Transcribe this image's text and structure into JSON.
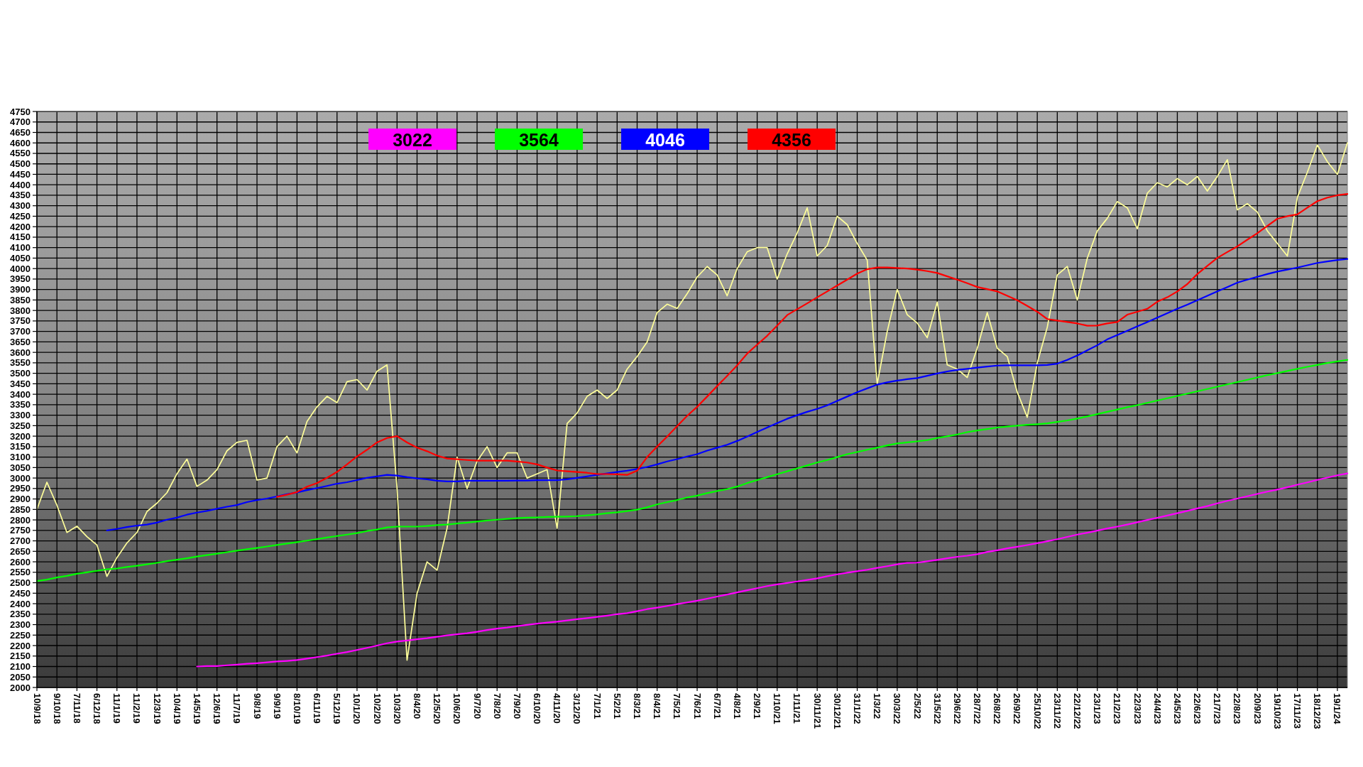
{
  "chart_data": {
    "type": "line",
    "categories": [
      "10/9/18",
      null,
      "9/10/18",
      null,
      "7/11/18",
      null,
      "6/12/18",
      null,
      "11/1/19",
      null,
      "11/2/19",
      null,
      "12/3/19",
      null,
      "10/4/19",
      null,
      "14/5/19",
      null,
      "12/6/19",
      null,
      "11/7/19",
      null,
      "9/8/19",
      null,
      "9/9/19",
      null,
      "8/10/19",
      null,
      "6/11/19",
      null,
      "5/12/19",
      null,
      "10/1/20",
      null,
      "10/2/20",
      null,
      "10/3/20",
      null,
      "8/4/20",
      null,
      "12/5/20",
      null,
      "10/6/20",
      null,
      "9/7/20",
      null,
      "7/8/20",
      null,
      "7/9/20",
      null,
      "6/10/20",
      null,
      "4/11/20",
      null,
      "3/12/20",
      null,
      "7/1/21",
      null,
      "5/2/21",
      null,
      "8/3/21",
      null,
      "8/4/21",
      null,
      "7/5/21",
      null,
      "7/6/21",
      null,
      "6/7/21",
      null,
      "4/8/21",
      null,
      "2/9/21",
      null,
      "1/10/21",
      null,
      "1/11/21",
      null,
      "30/11/21",
      null,
      "30/12/21",
      null,
      "31/1/22",
      null,
      "1/3/22",
      null,
      "30/3/22",
      null,
      "2/5/22",
      null,
      "31/5/22",
      null,
      "29/6/22",
      null,
      "28/7/22",
      null,
      "26/8/22",
      null,
      "26/9/22",
      null,
      "25/10/22",
      null,
      "23/11/22",
      null,
      "22/12/22",
      null,
      "23/1/23",
      null,
      "21/2/23",
      null,
      "22/3/23",
      null,
      "24/4/23",
      null,
      "24/5/23",
      null,
      "22/6/23",
      null,
      "21/7/23",
      null,
      "22/8/23",
      null,
      "20/9/23",
      null,
      "19/10/23",
      null,
      "17/11/23",
      null,
      "18/12/23",
      null,
      "19/1/24",
      null
    ],
    "series": [
      {
        "color": "#ffff99",
        "values": [
          2850,
          2980,
          2870,
          2740,
          2770,
          2720,
          2680,
          2530,
          2620,
          2690,
          2740,
          2840,
          2880,
          2930,
          3020,
          3090,
          2960,
          2990,
          3040,
          3130,
          3170,
          3180,
          2990,
          3000,
          3150,
          3200,
          3120,
          3270,
          3340,
          3390,
          3360,
          3460,
          3470,
          3420,
          3510,
          3540,
          2950,
          2130,
          2450,
          2600,
          2560,
          2760,
          3100,
          2950,
          3080,
          3150,
          3050,
          3120,
          3120,
          3000,
          3020,
          3040,
          2760,
          3260,
          3310,
          3390,
          3420,
          3380,
          3420,
          3520,
          3580,
          3650,
          3790,
          3830,
          3810,
          3880,
          3960,
          4010,
          3970,
          3870,
          4000,
          4080,
          4100,
          4100,
          3950,
          4070,
          4170,
          4290,
          4060,
          4110,
          4250,
          4210,
          4120,
          4040,
          3450,
          3700,
          3900,
          3780,
          3740,
          3670,
          3840,
          3540,
          3520,
          3480,
          3620,
          3790,
          3620,
          3580,
          3410,
          3290,
          3550,
          3720,
          3970,
          4010,
          3850,
          4050,
          4180,
          4240,
          4320,
          4290,
          4190,
          4360,
          4410,
          4390,
          4430,
          4400,
          4440,
          4370,
          4440,
          4520,
          4280,
          4310,
          4270,
          4180,
          4120,
          4060,
          4340,
          4460,
          4590,
          4510,
          4450,
          4600
        ]
      },
      {
        "name": "3022",
        "color": "#ff00ff",
        "values": [
          null,
          null,
          null,
          null,
          null,
          null,
          null,
          null,
          null,
          null,
          null,
          null,
          null,
          null,
          null,
          null,
          2100,
          2102,
          2102,
          2106,
          2109,
          2113,
          2116,
          2120,
          2124,
          2127,
          2131,
          2138,
          2145,
          2152,
          2161,
          2169,
          2179,
          2189,
          2200,
          2211,
          2219,
          2224,
          2230,
          2235,
          2242,
          2249,
          2254,
          2259,
          2266,
          2274,
          2281,
          2286,
          2293,
          2299,
          2305,
          2310,
          2314,
          2320,
          2326,
          2331,
          2337,
          2343,
          2350,
          2355,
          2364,
          2374,
          2381,
          2389,
          2398,
          2406,
          2414,
          2424,
          2434,
          2444,
          2454,
          2464,
          2474,
          2484,
          2492,
          2499,
          2506,
          2513,
          2521,
          2531,
          2540,
          2548,
          2555,
          2562,
          2571,
          2579,
          2588,
          2595,
          2596,
          2602,
          2609,
          2617,
          2624,
          2629,
          2636,
          2647,
          2655,
          2664,
          2672,
          2680,
          2689,
          2698,
          2708,
          2719,
          2730,
          2739,
          2749,
          2759,
          2768,
          2778,
          2789,
          2800,
          2810,
          2821,
          2832,
          2843,
          2855,
          2866,
          2879,
          2891,
          2902,
          2913,
          2924,
          2935,
          2945,
          2956,
          2968,
          2979,
          2991,
          3002,
          3013,
          3022
        ]
      },
      {
        "name": "3564",
        "color": "#00ff00",
        "values": [
          2508,
          2515,
          2525,
          2533,
          2543,
          2550,
          2557,
          2564,
          2568,
          2575,
          2581,
          2588,
          2595,
          2603,
          2610,
          2617,
          2625,
          2632,
          2639,
          2646,
          2653,
          2660,
          2666,
          2673,
          2680,
          2687,
          2694,
          2701,
          2708,
          2716,
          2723,
          2730,
          2737,
          2747,
          2754,
          2764,
          2768,
          2768,
          2768,
          2771,
          2775,
          2778,
          2783,
          2787,
          2792,
          2797,
          2801,
          2805,
          2808,
          2811,
          2812,
          2814,
          2815,
          2816,
          2818,
          2822,
          2826,
          2832,
          2836,
          2842,
          2849,
          2860,
          2874,
          2885,
          2895,
          2907,
          2916,
          2928,
          2938,
          2947,
          2959,
          2976,
          2990,
          3004,
          3018,
          3032,
          3046,
          3060,
          3074,
          3086,
          3100,
          3114,
          3124,
          3135,
          3145,
          3156,
          3165,
          3170,
          3175,
          3181,
          3191,
          3199,
          3208,
          3219,
          3227,
          3234,
          3241,
          3246,
          3250,
          3254,
          3257,
          3261,
          3268,
          3275,
          3284,
          3294,
          3305,
          3316,
          3327,
          3338,
          3348,
          3359,
          3370,
          3381,
          3392,
          3403,
          3414,
          3425,
          3436,
          3447,
          3458,
          3469,
          3480,
          3491,
          3501,
          3511,
          3521,
          3531,
          3540,
          3549,
          3557,
          3564
        ]
      },
      {
        "name": "4046",
        "color": "#0000ff",
        "values": [
          null,
          null,
          null,
          null,
          null,
          null,
          null,
          2750,
          2757,
          2766,
          2773,
          2778,
          2787,
          2801,
          2811,
          2825,
          2835,
          2843,
          2853,
          2863,
          2871,
          2885,
          2895,
          2902,
          2912,
          2923,
          2931,
          2942,
          2952,
          2962,
          2973,
          2980,
          2990,
          3001,
          3008,
          3015,
          3012,
          3004,
          2998,
          2994,
          2987,
          2984,
          2984,
          2987,
          2987,
          2987,
          2987,
          2987,
          2988,
          2988,
          2990,
          2990,
          2990,
          2994,
          3001,
          3008,
          3015,
          3022,
          3029,
          3035,
          3043,
          3053,
          3065,
          3079,
          3090,
          3103,
          3114,
          3131,
          3145,
          3159,
          3177,
          3198,
          3220,
          3241,
          3262,
          3283,
          3300,
          3316,
          3330,
          3347,
          3368,
          3389,
          3410,
          3428,
          3446,
          3457,
          3465,
          3472,
          3477,
          3488,
          3499,
          3509,
          3516,
          3521,
          3527,
          3532,
          3537,
          3538,
          3538,
          3538,
          3538,
          3540,
          3546,
          3564,
          3585,
          3610,
          3634,
          3662,
          3683,
          3703,
          3724,
          3745,
          3766,
          3787,
          3808,
          3828,
          3849,
          3870,
          3891,
          3912,
          3933,
          3947,
          3961,
          3974,
          3986,
          3995,
          4005,
          4016,
          4027,
          4034,
          4041,
          4046
        ]
      },
      {
        "name": "4356",
        "color": "#ff0000",
        "values": [
          null,
          null,
          null,
          null,
          null,
          null,
          null,
          null,
          null,
          null,
          null,
          null,
          null,
          null,
          null,
          null,
          null,
          null,
          null,
          null,
          null,
          null,
          null,
          null,
          2910,
          2920,
          2933,
          2959,
          2976,
          3001,
          3029,
          3065,
          3103,
          3135,
          3170,
          3191,
          3200,
          3170,
          3145,
          3128,
          3107,
          3093,
          3090,
          3086,
          3083,
          3083,
          3083,
          3083,
          3079,
          3074,
          3065,
          3050,
          3036,
          3032,
          3029,
          3025,
          3019,
          3019,
          3018,
          3015,
          3035,
          3100,
          3150,
          3198,
          3248,
          3297,
          3340,
          3389,
          3439,
          3488,
          3538,
          3594,
          3637,
          3679,
          3728,
          3778,
          3806,
          3834,
          3863,
          3891,
          3919,
          3947,
          3976,
          3997,
          4005,
          4005,
          4003,
          4000,
          3995,
          3988,
          3979,
          3963,
          3947,
          3930,
          3912,
          3902,
          3891,
          3870,
          3849,
          3822,
          3794,
          3759,
          3752,
          3745,
          3738,
          3727,
          3728,
          3738,
          3745,
          3780,
          3794,
          3808,
          3842,
          3863,
          3891,
          3926,
          3974,
          4013,
          4051,
          4079,
          4106,
          4138,
          4169,
          4204,
          4238,
          4250,
          4259,
          4291,
          4322,
          4339,
          4350,
          4356
        ]
      }
    ],
    "ylim": [
      2000,
      4750
    ],
    "yticks": [
      2000,
      2050,
      2100,
      2150,
      2200,
      2250,
      2300,
      2350,
      2400,
      2450,
      2500,
      2550,
      2600,
      2650,
      2700,
      2750,
      2800,
      2850,
      2900,
      2950,
      3000,
      3050,
      3100,
      3150,
      3200,
      3250,
      3300,
      3350,
      3400,
      3450,
      3500,
      3550,
      3600,
      3650,
      3700,
      3750,
      3800,
      3850,
      3900,
      3950,
      4000,
      4050,
      4100,
      4150,
      4200,
      4250,
      4300,
      4350,
      4400,
      4450,
      4500,
      4550,
      4600,
      4650,
      4700,
      4750
    ],
    "grid": true,
    "legend": "top"
  }
}
